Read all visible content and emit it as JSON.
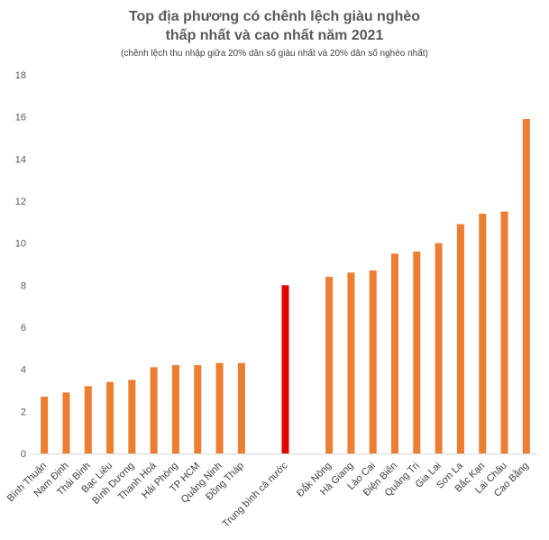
{
  "chart_data": {
    "type": "bar",
    "title_line1": "Top địa phương có chênh lệch giàu nghèo",
    "title_line2": "thấp nhất và cao nhất năm 2021",
    "subtitle": "(chênh lệch thu nhập giữa 20% dân số giàu nhất và 20% dân số nghèo nhất)",
    "ylim": [
      0,
      18
    ],
    "yticks": [
      0,
      2,
      4,
      6,
      8,
      10,
      12,
      14,
      16,
      18
    ],
    "grid": false,
    "colors": {
      "bar": "#ED7D31",
      "highlight": "#E00000",
      "axis": "#D9D9D9"
    },
    "categories": [
      "Bình Thuận",
      "Nam Định",
      "Thái Bình",
      "Bạc Liêu",
      "Bình Dương",
      "Thanh Hoá",
      "Hải Phòng",
      "TP HCM",
      "Quảng Ninh",
      "Đồng Tháp",
      "",
      "Trung bình cả nước",
      "",
      "Đắk Nông",
      "Hà Giang",
      "Lào Cai",
      "Điện Biên",
      "Quảng Trị",
      "Gia Lai",
      "Sơn La",
      "Bắc Kạn",
      "Lai Châu",
      "Cao Bằng"
    ],
    "values": [
      2.7,
      2.9,
      3.2,
      3.4,
      3.5,
      4.1,
      4.2,
      4.2,
      4.3,
      4.3,
      null,
      8.0,
      null,
      8.4,
      8.6,
      8.7,
      9.5,
      9.6,
      10.0,
      10.9,
      11.4,
      11.5,
      15.9
    ],
    "highlight_category": "Trung bình cả nước"
  }
}
